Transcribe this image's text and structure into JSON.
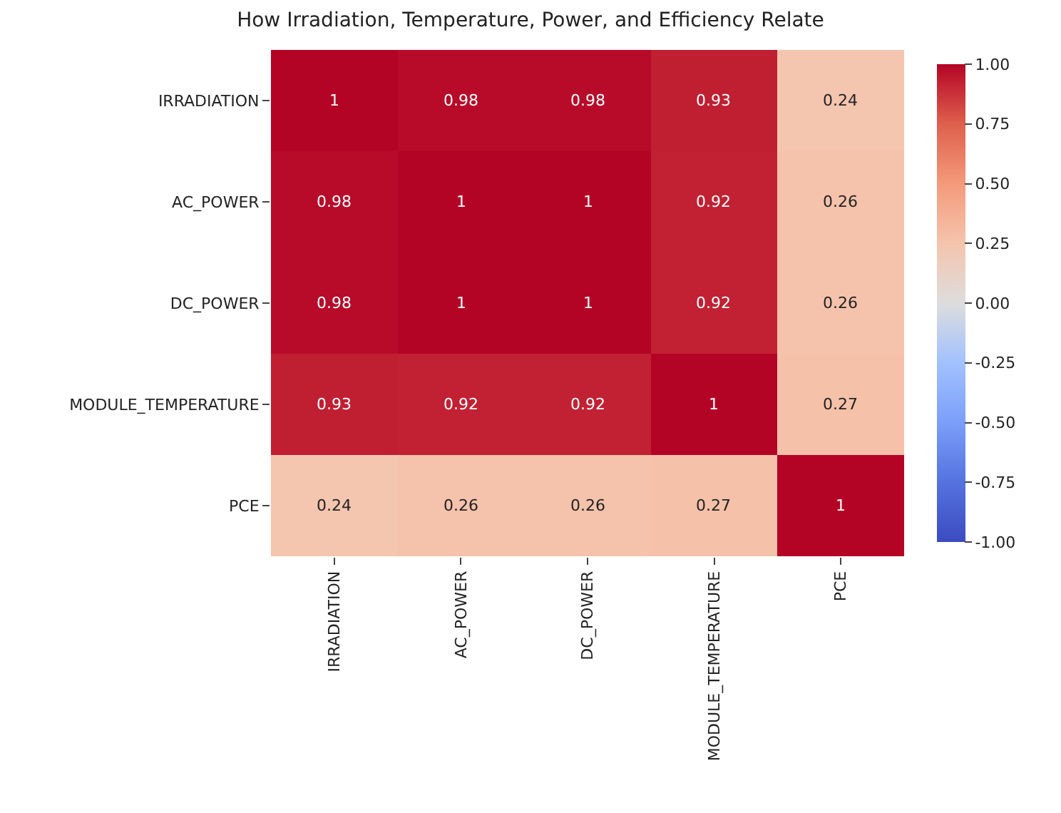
{
  "chart_data": {
    "type": "heatmap",
    "title": "How Irradiation, Temperature, Power, and Efficiency Relate",
    "categories": [
      "IRRADIATION",
      "AC_POWER",
      "DC_POWER",
      "MODULE_TEMPERATURE",
      "PCE"
    ],
    "y_categories": [
      "IRRADIATION",
      "AC_POWER",
      "DC_POWER",
      "MODULE_TEMPERATURE",
      "PCE"
    ],
    "cells": [
      [
        1,
        0.98,
        0.98,
        0.93,
        0.24
      ],
      [
        0.98,
        1,
        1,
        0.92,
        0.26
      ],
      [
        0.98,
        1,
        1,
        0.92,
        0.26
      ],
      [
        0.93,
        0.92,
        0.92,
        1,
        0.27
      ],
      [
        0.24,
        0.26,
        0.26,
        0.27,
        1
      ]
    ],
    "data_labels": true,
    "clim": [
      -1,
      1
    ],
    "cticks": [
      {
        "value": -1,
        "label": "-1.00"
      },
      {
        "value": -0.75,
        "label": "-0.75"
      },
      {
        "value": -0.5,
        "label": "-0.50"
      },
      {
        "value": -0.25,
        "label": "-0.25"
      },
      {
        "value": 0,
        "label": "0.00"
      },
      {
        "value": 0.25,
        "label": "0.25"
      },
      {
        "value": 0.5,
        "label": "0.50"
      },
      {
        "value": 0.75,
        "label": "0.75"
      },
      {
        "value": 1,
        "label": "1.00"
      }
    ]
  }
}
